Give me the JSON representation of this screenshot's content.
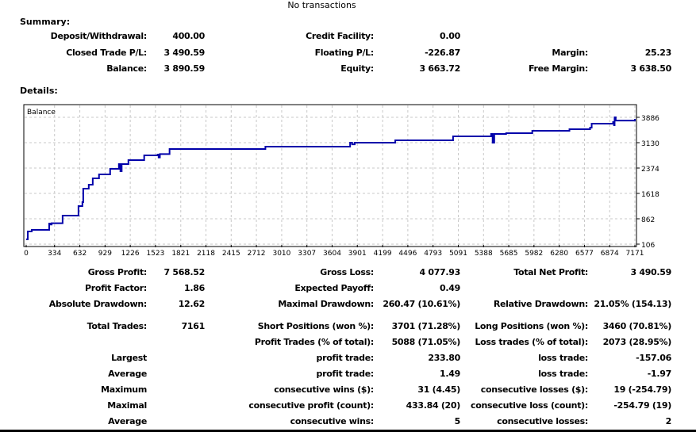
{
  "header": {
    "note": "No transactions"
  },
  "summary": {
    "title": "Summary:",
    "rows": [
      [
        "Deposit/Withdrawal:",
        "400.00",
        "Credit Facility:",
        "0.00",
        "",
        ""
      ],
      [
        "Closed Trade P/L:",
        "3 490.59",
        "Floating P/L:",
        "-226.87",
        "Margin:",
        "25.23"
      ],
      [
        "Balance:",
        "3 890.59",
        "Equity:",
        "3 663.72",
        "Free Margin:",
        "3 638.50"
      ]
    ]
  },
  "details": {
    "title": "Details:",
    "rows": [
      [
        "Gross Profit:",
        "7 568.52",
        "Gross Loss:",
        "4 077.93",
        "Total Net Profit:",
        "3 490.59"
      ],
      [
        "Profit Factor:",
        "1.86",
        "Expected Payoff:",
        "0.49",
        "",
        ""
      ],
      [
        "Absolute Drawdown:",
        "12.62",
        "Maximal Drawdown:",
        "260.47 (10.61%)",
        "Relative Drawdown:",
        "21.05% (154.13)"
      ],
      [
        "Total Trades:",
        "7161",
        "Short Positions (won %):",
        "3701 (71.28%)",
        "Long Positions (won %):",
        "3460 (70.81%)"
      ],
      [
        "",
        "",
        "Profit Trades (% of total):",
        "5088 (71.05%)",
        "Loss trades (% of total):",
        "2073 (28.95%)"
      ],
      [
        "Largest",
        "",
        "profit trade:",
        "233.80",
        "loss trade:",
        "-157.06"
      ],
      [
        "Average",
        "",
        "profit trade:",
        "1.49",
        "loss trade:",
        "-1.97"
      ],
      [
        "Maximum",
        "",
        "consecutive wins ($):",
        "31 (4.45)",
        "consecutive losses ($):",
        "19 (-254.79)"
      ],
      [
        "Maximal",
        "",
        "consecutive profit (count):",
        "433.84 (20)",
        "consecutive loss (count):",
        "-254.79 (19)"
      ],
      [
        "Average",
        "",
        "consecutive wins:",
        "5",
        "consecutive losses:",
        "2"
      ]
    ]
  },
  "chart_data": {
    "type": "line",
    "legend": "Balance",
    "legend_placement": "top-left",
    "grid": true,
    "line_color": "#0000aa",
    "xlim": [
      0,
      7171
    ],
    "ylim": [
      106,
      3886
    ],
    "x_ticks": [
      "0",
      "334",
      "632",
      "929",
      "1226",
      "1523",
      "1821",
      "2118",
      "2415",
      "2712",
      "3010",
      "3307",
      "3604",
      "3901",
      "4199",
      "4496",
      "4793",
      "5091",
      "5388",
      "5685",
      "5982",
      "6280",
      "6577",
      "6874",
      "7171"
    ],
    "y_ticks": [
      "3886",
      "3130",
      "2374",
      "1618",
      "862",
      "106"
    ],
    "series": [
      {
        "name": "Balance",
        "points": [
          [
            0,
            250
          ],
          [
            19,
            484
          ],
          [
            65,
            531
          ],
          [
            271,
            720
          ],
          [
            290,
            690
          ],
          [
            300,
            730
          ],
          [
            429,
            957
          ],
          [
            616,
            1240
          ],
          [
            662,
            1358
          ],
          [
            672,
            1760
          ],
          [
            737,
            1878
          ],
          [
            784,
            2067
          ],
          [
            858,
            2185
          ],
          [
            989,
            2350
          ],
          [
            1092,
            2492
          ],
          [
            1110,
            2280
          ],
          [
            1125,
            2492
          ],
          [
            1204,
            2610
          ],
          [
            1390,
            2752
          ],
          [
            1549,
            2776
          ],
          [
            1560,
            2690
          ],
          [
            1575,
            2790
          ],
          [
            1689,
            2941
          ],
          [
            2165,
            2941
          ],
          [
            2818,
            3012
          ],
          [
            3816,
            3130
          ],
          [
            3840,
            3080
          ],
          [
            3870,
            3130
          ],
          [
            4348,
            3201
          ],
          [
            5029,
            3319
          ],
          [
            5477,
            3390
          ],
          [
            5495,
            3130
          ],
          [
            5514,
            3390
          ],
          [
            5654,
            3413
          ],
          [
            5962,
            3484
          ],
          [
            6400,
            3532
          ],
          [
            6643,
            3579
          ],
          [
            6662,
            3697
          ],
          [
            6914,
            3744
          ],
          [
            6925,
            3650
          ],
          [
            6932,
            3886
          ],
          [
            6945,
            3790
          ],
          [
            7171,
            3839
          ]
        ]
      }
    ]
  }
}
